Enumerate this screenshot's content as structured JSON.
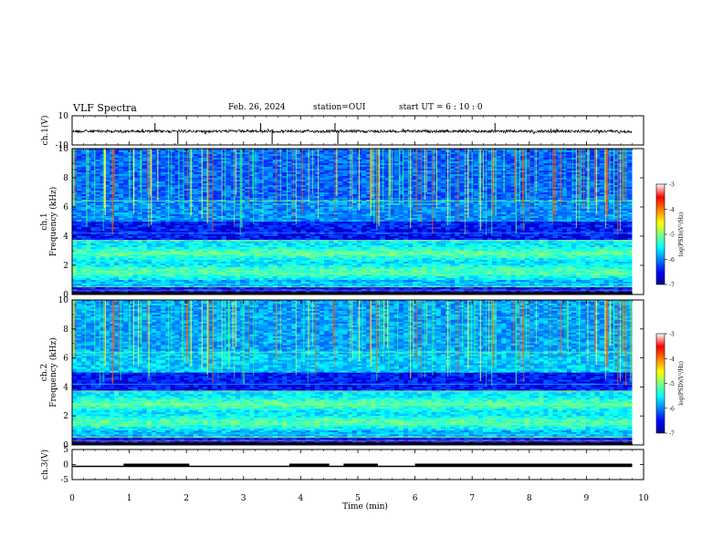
{
  "header": {
    "title": "VLF Spectra",
    "date": "Feb. 26, 2024",
    "station": "station=OUI",
    "start": "start  UT =   6 : 10 : 0"
  },
  "chart_data": [
    {
      "type": "line",
      "ylabel": "ch.1(V)",
      "ylim": [
        -10,
        10
      ],
      "ytick_labels": [
        "10",
        "-10"
      ],
      "xlim": [
        0,
        10
      ],
      "x_coverage_min": [
        0,
        9.8
      ],
      "baseline": 0,
      "spike_times_min": [
        1.45,
        1.85,
        3.3,
        3.5,
        4.6,
        4.65,
        7.4
      ]
    },
    {
      "type": "heatmap",
      "ylabel": "ch.1\nFrequency (kHz)",
      "ylim": [
        0,
        10
      ],
      "ytick_labels": [
        "0",
        "2",
        "4",
        "6",
        "8",
        "10"
      ],
      "xlim": [
        0,
        10
      ],
      "colorbar": {
        "range": [
          -7,
          -3
        ],
        "tick_labels": [
          "-3",
          "-4",
          "-5",
          "-6",
          "-7"
        ],
        "label": "log(PSD)(V²/Hz)"
      }
    },
    {
      "type": "heatmap",
      "ylabel": "ch.2\nFrequency (kHz)",
      "ylim": [
        0,
        10
      ],
      "ytick_labels": [
        "0",
        "2",
        "4",
        "6",
        "8",
        "10"
      ],
      "xlim": [
        0,
        10
      ],
      "colorbar": {
        "range": [
          -7,
          -3
        ],
        "tick_labels": [
          "-3",
          "-4",
          "-5",
          "-6",
          "-7"
        ],
        "label": "log(PSD)(V²/Hz)"
      }
    },
    {
      "type": "line",
      "ylabel": "ch.3(V)",
      "ylim": [
        -5,
        5
      ],
      "ytick_labels": [
        "5",
        "0",
        "-5"
      ],
      "baseline": 0,
      "high_segments_min": [
        [
          0.9,
          2.05
        ],
        [
          3.8,
          4.5
        ],
        [
          4.75,
          5.35
        ],
        [
          6.0,
          9.8
        ]
      ],
      "xlim": [
        0,
        10
      ],
      "xlabel": "Time (min)",
      "xtick_labels": [
        "0",
        "1",
        "2",
        "3",
        "4",
        "5",
        "6",
        "7",
        "8",
        "9",
        "10"
      ]
    }
  ]
}
